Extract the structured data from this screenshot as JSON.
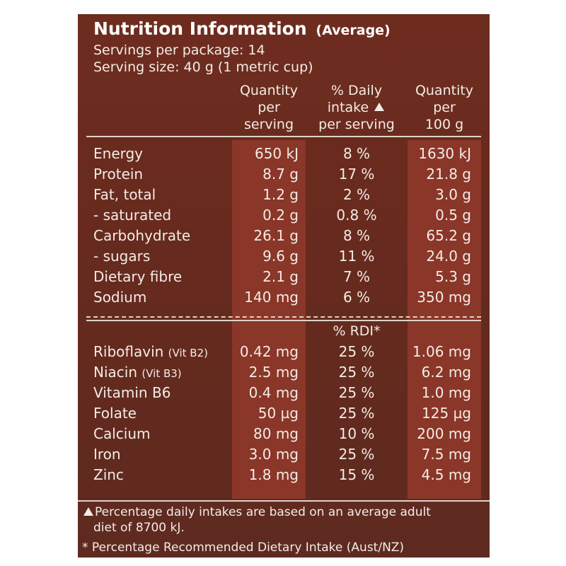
{
  "title": "Nutrition Information",
  "title_suffix": "(Average)",
  "servings_per_package": "Servings per package: 14",
  "serving_size": "Serving size: 40 g (1 metric cup)",
  "headers": {
    "col1": [
      "Quantity",
      "per",
      "serving"
    ],
    "col2_line1": "% Daily",
    "col2_line2": "intake",
    "col2_line3": "per serving",
    "col3": [
      "Quantity",
      "per",
      "100 g"
    ]
  },
  "nutrients": [
    {
      "label": "Energy",
      "per_serving": "650 kJ",
      "daily": "8 %",
      "per_100g": "1630 kJ"
    },
    {
      "label": "Protein",
      "per_serving": "8.7 g",
      "daily": "17 %",
      "per_100g": "21.8 g"
    },
    {
      "label": "Fat, total",
      "per_serving": "1.2 g",
      "daily": "2 %",
      "per_100g": "3.0 g"
    },
    {
      "label": "- saturated",
      "per_serving": "0.2 g",
      "daily": "0.8 %",
      "per_100g": "0.5 g"
    },
    {
      "label": "Carbohydrate",
      "per_serving": "26.1 g",
      "daily": "8 %",
      "per_100g": "65.2 g"
    },
    {
      "label": "- sugars",
      "per_serving": "9.6 g",
      "daily": "11 %",
      "per_100g": "24.0 g"
    },
    {
      "label": "Dietary fibre",
      "per_serving": "2.1 g",
      "daily": "7 %",
      "per_100g": "5.3 g"
    },
    {
      "label": "Sodium",
      "per_serving": "140 mg",
      "daily": "6 %",
      "per_100g": "350 mg"
    }
  ],
  "rdi_header": "% RDI*",
  "vitamins": [
    {
      "label": "Riboflavin",
      "note": "(Vit B2)",
      "per_serving": "0.42 mg",
      "rdi": "25 %",
      "per_100g": "1.06 mg"
    },
    {
      "label": "Niacin",
      "note": "(Vit B3)",
      "per_serving": "2.5 mg",
      "rdi": "25 %",
      "per_100g": "6.2 mg"
    },
    {
      "label": "Vitamin B6",
      "note": "",
      "per_serving": "0.4 mg",
      "rdi": "25 %",
      "per_100g": "1.0 mg"
    },
    {
      "label": "Folate",
      "note": "",
      "per_serving": "50 µg",
      "rdi": "25 %",
      "per_100g": "125 µg"
    },
    {
      "label": "Calcium",
      "note": "",
      "per_serving": "80 mg",
      "rdi": "10 %",
      "per_100g": "200 mg"
    },
    {
      "label": "Iron",
      "note": "",
      "per_serving": "3.0 mg",
      "rdi": "25 %",
      "per_100g": "7.5 mg"
    },
    {
      "label": "Zinc",
      "note": "",
      "per_serving": "1.8 mg",
      "rdi": "15 %",
      "per_100g": "4.5 mg"
    }
  ],
  "footnotes": {
    "daily_line1": "Percentage daily intakes are based on an average adult",
    "daily_line2": "diet of 8700 kJ.",
    "rdi_symbol": "*",
    "rdi": "Percentage Recommended Dietary Intake (Aust/NZ)"
  },
  "colors": {
    "panel": "#6a2a1d",
    "column_highlight": "#8a3628",
    "text": "#f3ece6"
  }
}
